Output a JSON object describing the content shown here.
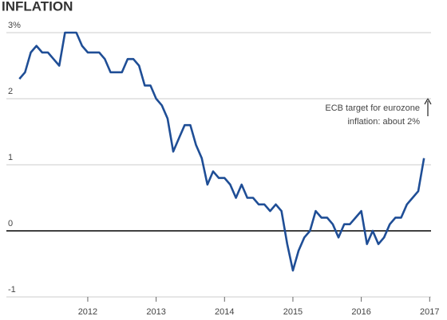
{
  "chart_data": {
    "type": "line",
    "title": "INFLATION",
    "annotation": [
      "ECB target for eurozone",
      "inflation: about 2%"
    ],
    "x": [
      2011,
      2011.083,
      2011.167,
      2011.25,
      2011.333,
      2011.417,
      2011.5,
      2011.583,
      2011.667,
      2011.75,
      2011.833,
      2011.917,
      2012,
      2012.083,
      2012.167,
      2012.25,
      2012.333,
      2012.417,
      2012.5,
      2012.583,
      2012.667,
      2012.75,
      2012.833,
      2012.917,
      2013,
      2013.083,
      2013.167,
      2013.25,
      2013.333,
      2013.417,
      2013.5,
      2013.583,
      2013.667,
      2013.75,
      2013.833,
      2013.917,
      2014,
      2014.083,
      2014.167,
      2014.25,
      2014.333,
      2014.417,
      2014.5,
      2014.583,
      2014.667,
      2014.75,
      2014.833,
      2014.917,
      2015,
      2015.083,
      2015.167,
      2015.25,
      2015.333,
      2015.417,
      2015.5,
      2015.583,
      2015.667,
      2015.75,
      2015.833,
      2015.917,
      2016,
      2016.083,
      2016.167,
      2016.25,
      2016.333,
      2016.417,
      2016.5,
      2016.583,
      2016.667,
      2016.75,
      2016.833,
      2016.917
    ],
    "series": [
      {
        "color": "#1f4e96",
        "values": [
          2.3,
          2.4,
          2.7,
          2.8,
          2.7,
          2.7,
          2.6,
          2.5,
          3.0,
          3.0,
          3.0,
          2.8,
          2.7,
          2.7,
          2.7,
          2.6,
          2.4,
          2.4,
          2.4,
          2.6,
          2.6,
          2.5,
          2.2,
          2.2,
          2.0,
          1.9,
          1.7,
          1.2,
          1.4,
          1.6,
          1.6,
          1.3,
          1.1,
          0.7,
          0.9,
          0.8,
          0.8,
          0.7,
          0.5,
          0.7,
          0.5,
          0.5,
          0.4,
          0.4,
          0.3,
          0.4,
          0.3,
          -0.2,
          -0.6,
          -0.3,
          -0.1,
          0.0,
          0.3,
          0.2,
          0.2,
          0.1,
          -0.1,
          0.1,
          0.1,
          0.2,
          0.3,
          -0.2,
          0.0,
          -0.2,
          -0.1,
          0.1,
          0.2,
          0.2,
          0.4,
          0.5,
          0.6,
          1.1
        ]
      }
    ],
    "xlim": [
      2010.81,
      2017.02
    ],
    "xticks": [
      2012,
      2013,
      2014,
      2015,
      2016,
      2017
    ],
    "ylim": [
      -1,
      3
    ],
    "yticks": [
      {
        "value": 3,
        "label": "3%"
      },
      2,
      1,
      0,
      -1
    ],
    "grid": true
  }
}
